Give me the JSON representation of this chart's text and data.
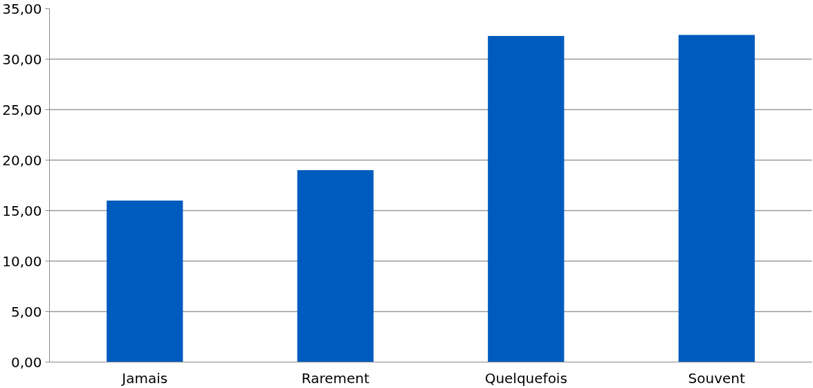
{
  "chart_data": {
    "type": "bar",
    "categories": [
      "Jamais",
      "Rarement",
      "Quelquefois",
      "Souvent"
    ],
    "values": [
      16.0,
      19.0,
      32.3,
      32.4
    ],
    "color": "#005bbf",
    "ylim": [
      0,
      35
    ],
    "yticks": [
      {
        "value": 0,
        "label": "0,00"
      },
      {
        "value": 5,
        "label": "5,00"
      },
      {
        "value": 10,
        "label": "10,00"
      },
      {
        "value": 15,
        "label": "15,00"
      },
      {
        "value": 20,
        "label": "20,00"
      },
      {
        "value": 25,
        "label": "25,00"
      },
      {
        "value": 30,
        "label": "30,00"
      },
      {
        "value": 35,
        "label": "35,00"
      }
    ],
    "grid": "y"
  }
}
